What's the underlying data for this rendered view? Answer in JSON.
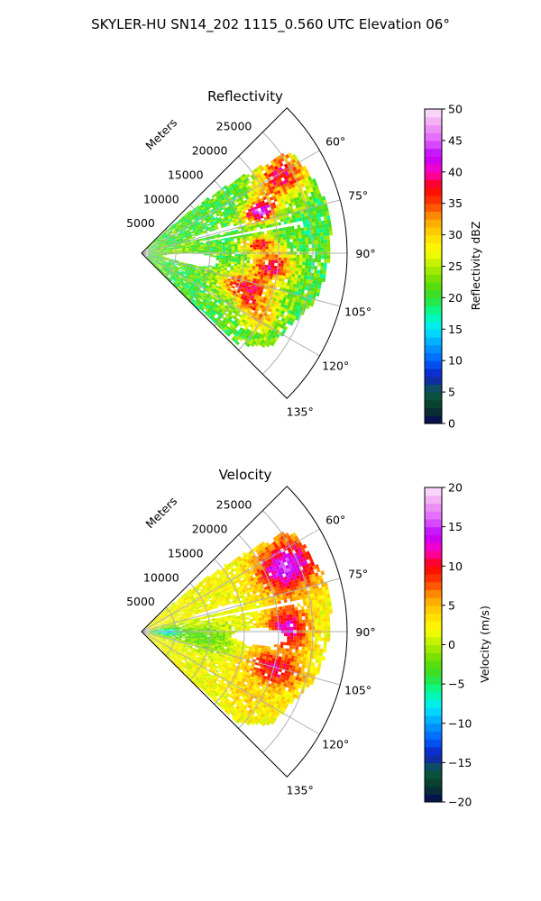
{
  "figure": {
    "title": "SKYLER-HU  SN14_202  1115_0.560 UTC Elevation 06°"
  },
  "chart_data": [
    {
      "type": "heatmap",
      "projection": "polar-sector",
      "title": "Reflectivity",
      "range_label": "Meters",
      "range_ticks": [
        5000,
        10000,
        15000,
        20000,
        25000
      ],
      "range_tick_labels": [
        "5000",
        "10000",
        "15000",
        "20000",
        "25000"
      ],
      "range_max": 30000,
      "azimuth_range_deg": [
        45,
        135
      ],
      "azimuth_ticks": [
        60,
        75,
        90,
        105,
        120,
        135
      ],
      "azimuth_tick_labels": [
        "60°",
        "75°",
        "90°",
        "105°",
        "120°",
        "135°"
      ],
      "grid": true,
      "colorbar": {
        "label": "Reflectivity dBZ",
        "min": 0,
        "max": 50,
        "ticks": [
          0,
          5,
          10,
          15,
          20,
          25,
          30,
          35,
          40,
          45,
          50
        ],
        "tick_labels": [
          "0",
          "5",
          "10",
          "15",
          "20",
          "25",
          "30",
          "35",
          "40",
          "45",
          "50"
        ],
        "stops": [
          [
            0.0,
            "#04075a"
          ],
          [
            0.05,
            "#0a3a2a"
          ],
          [
            0.1,
            "#0b5a45"
          ],
          [
            0.15,
            "#1020c0"
          ],
          [
            0.2,
            "#0060ff"
          ],
          [
            0.25,
            "#00a0ff"
          ],
          [
            0.3,
            "#00e8ff"
          ],
          [
            0.35,
            "#00ffa0"
          ],
          [
            0.4,
            "#30e030"
          ],
          [
            0.45,
            "#66dd00"
          ],
          [
            0.5,
            "#b5ee00"
          ],
          [
            0.55,
            "#ffff00"
          ],
          [
            0.6,
            "#ffd800"
          ],
          [
            0.65,
            "#ffa000"
          ],
          [
            0.7,
            "#ff4000"
          ],
          [
            0.75,
            "#ff0000"
          ],
          [
            0.8,
            "#ff00c0"
          ],
          [
            0.85,
            "#c000ff"
          ],
          [
            0.9,
            "#e060ff"
          ],
          [
            0.95,
            "#f0a0f0"
          ],
          [
            1.0,
            "#fce6fc"
          ]
        ]
      },
      "field": {
        "seed": 7,
        "noise": 0.08,
        "base": 0.42,
        "features": [
          {
            "az": 60,
            "r": 23000,
            "saz": 8,
            "sr": 4000,
            "v": 0.35
          },
          {
            "az": 70,
            "r": 18000,
            "saz": 5,
            "sr": 2500,
            "v": 0.45
          },
          {
            "az": 85,
            "r": 17000,
            "saz": 4,
            "sr": 2500,
            "v": 0.3
          },
          {
            "az": 95,
            "r": 19000,
            "saz": 6,
            "sr": 3000,
            "v": 0.35
          },
          {
            "az": 108,
            "r": 16000,
            "saz": 8,
            "sr": 4000,
            "v": 0.35
          },
          {
            "az": 118,
            "r": 19000,
            "saz": 6,
            "sr": 3000,
            "v": 0.2
          },
          {
            "az": 90,
            "r": 6000,
            "saz": 12,
            "sr": 3000,
            "v": 0.05
          }
        ],
        "gaps": [
          {
            "az": 79,
            "r": 16000,
            "saz": 0.8,
            "sr": 9000
          },
          {
            "az": 96,
            "r": 7000,
            "saz": 6,
            "sr": 4000
          },
          {
            "az": 74,
            "r": 11000,
            "saz": 2,
            "sr": 4000
          }
        ],
        "extent": [
          {
            "az": 45,
            "r0": 1000,
            "r1": 0
          },
          {
            "az": 55,
            "r0": 1000,
            "r1": 26000
          },
          {
            "az": 65,
            "r0": 1000,
            "r1": 27000
          },
          {
            "az": 75,
            "r0": 1000,
            "r1": 28000
          },
          {
            "az": 85,
            "r0": 1000,
            "r1": 27500
          },
          {
            "az": 95,
            "r0": 1000,
            "r1": 27000
          },
          {
            "az": 105,
            "r0": 1000,
            "r1": 26000
          },
          {
            "az": 115,
            "r0": 1000,
            "r1": 24000
          },
          {
            "az": 125,
            "r0": 1000,
            "r1": 23000
          },
          {
            "az": 133,
            "r0": 1000,
            "r1": 19000
          },
          {
            "az": 135,
            "r0": 1000,
            "r1": 0
          }
        ]
      }
    },
    {
      "type": "heatmap",
      "projection": "polar-sector",
      "title": "Velocity",
      "range_label": "Meters",
      "range_ticks": [
        5000,
        10000,
        15000,
        20000,
        25000
      ],
      "range_tick_labels": [
        "5000",
        "10000",
        "15000",
        "20000",
        "25000"
      ],
      "range_max": 30000,
      "azimuth_range_deg": [
        45,
        135
      ],
      "azimuth_ticks": [
        60,
        75,
        90,
        105,
        120,
        135
      ],
      "azimuth_tick_labels": [
        "60°",
        "75°",
        "90°",
        "105°",
        "120°",
        "135°"
      ],
      "grid": true,
      "colorbar": {
        "label": "Velocity (m/s)",
        "min": -20,
        "max": 20,
        "ticks": [
          -20,
          -15,
          -10,
          -5,
          0,
          5,
          10,
          15,
          20
        ],
        "tick_labels": [
          "−20",
          "−15",
          "−10",
          "−5",
          "0",
          "5",
          "10",
          "15",
          "20"
        ],
        "stops": [
          [
            0.0,
            "#04075a"
          ],
          [
            0.05,
            "#0a3a2a"
          ],
          [
            0.1,
            "#0b5a45"
          ],
          [
            0.15,
            "#1020c0"
          ],
          [
            0.2,
            "#0060ff"
          ],
          [
            0.25,
            "#00a0ff"
          ],
          [
            0.3,
            "#00e8ff"
          ],
          [
            0.35,
            "#00ffa0"
          ],
          [
            0.4,
            "#30e030"
          ],
          [
            0.45,
            "#66dd00"
          ],
          [
            0.5,
            "#b5ee00"
          ],
          [
            0.55,
            "#ffff00"
          ],
          [
            0.6,
            "#ffd800"
          ],
          [
            0.65,
            "#ffa000"
          ],
          [
            0.7,
            "#ff4000"
          ],
          [
            0.75,
            "#ff0000"
          ],
          [
            0.8,
            "#ff00c0"
          ],
          [
            0.85,
            "#c000ff"
          ],
          [
            0.9,
            "#e060ff"
          ],
          [
            0.95,
            "#f0a0f0"
          ],
          [
            1.0,
            "#fce6fc"
          ]
        ]
      },
      "field": {
        "seed": 11,
        "noise": 0.05,
        "base": 0.55,
        "features": [
          {
            "az": 65,
            "r": 23000,
            "saz": 9,
            "sr": 4500,
            "v": 0.33
          },
          {
            "az": 88,
            "r": 21000,
            "saz": 8,
            "sr": 3000,
            "v": 0.28
          },
          {
            "az": 105,
            "r": 20000,
            "saz": 7,
            "sr": 4000,
            "v": 0.22
          },
          {
            "az": 120,
            "r": 18000,
            "saz": 8,
            "sr": 4000,
            "v": 0.05
          },
          {
            "az": 90,
            "r": 3000,
            "saz": 10,
            "sr": 2500,
            "v": -0.25
          },
          {
            "az": 95,
            "r": 9000,
            "saz": 12,
            "sr": 4000,
            "v": -0.12
          }
        ],
        "gaps": [
          {
            "az": 79,
            "r": 16000,
            "saz": 0.8,
            "sr": 9000
          },
          {
            "az": 92,
            "r": 17000,
            "saz": 4,
            "sr": 4000
          },
          {
            "az": 74,
            "r": 11000,
            "saz": 2,
            "sr": 4000
          }
        ],
        "extent": [
          {
            "az": 45,
            "r0": 1000,
            "r1": 0
          },
          {
            "az": 55,
            "r0": 1000,
            "r1": 26000
          },
          {
            "az": 65,
            "r0": 1000,
            "r1": 27000
          },
          {
            "az": 75,
            "r0": 1000,
            "r1": 28000
          },
          {
            "az": 85,
            "r0": 1000,
            "r1": 27500
          },
          {
            "az": 95,
            "r0": 1000,
            "r1": 27000
          },
          {
            "az": 105,
            "r0": 1000,
            "r1": 26000
          },
          {
            "az": 115,
            "r0": 1000,
            "r1": 24000
          },
          {
            "az": 125,
            "r0": 1000,
            "r1": 23000
          },
          {
            "az": 133,
            "r0": 1000,
            "r1": 19000
          },
          {
            "az": 135,
            "r0": 1000,
            "r1": 0
          }
        ]
      }
    }
  ]
}
